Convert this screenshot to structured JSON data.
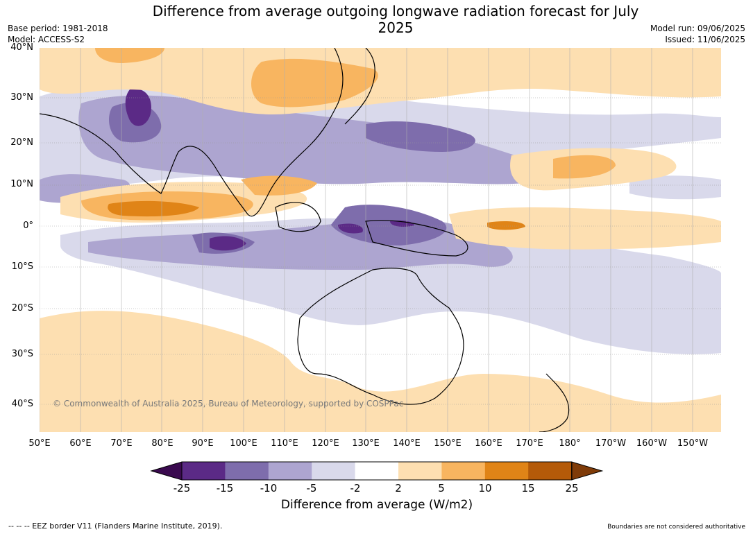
{
  "title": "Difference from average outgoing longwave radiation forecast for July 2025",
  "meta": {
    "base_period": "Base period: 1981-2018",
    "model": "Model: ACCESS-S2",
    "model_run": "Model run: 09/06/2025",
    "issued": "Issued: 11/06/2025"
  },
  "map": {
    "lat_labels": [
      "40°N",
      "30°N",
      "20°N",
      "10°N",
      "0°",
      "10°S",
      "20°S",
      "30°S",
      "40°S"
    ],
    "lon_labels": [
      "50°E",
      "60°E",
      "70°E",
      "80°E",
      "90°E",
      "100°E",
      "110°E",
      "120°E",
      "130°E",
      "140°E",
      "150°E",
      "160°E",
      "170°E",
      "180°",
      "170°W",
      "160°W",
      "150°W"
    ],
    "copyright": "© Commonwealth of Australia 2025, Bureau of Meteorology, supported by COSPPac"
  },
  "colorbar": {
    "tick_labels": [
      "-25",
      "-15",
      "-10",
      "-5",
      "-2",
      "2",
      "5",
      "10",
      "15",
      "25"
    ],
    "colors": [
      "#3a0a4f",
      "#5b2a86",
      "#7e6dac",
      "#ada5d0",
      "#d9d9eb",
      "#ffffff",
      "#fddfb1",
      "#f8b560",
      "#e08417",
      "#b45a09",
      "#7f3b08"
    ],
    "title": "Difference from average (W/m2)"
  },
  "footer": {
    "eez": "--  --  -- EEZ border V11 (Flanders Marine Institute, 2019).",
    "boundaries": "Boundaries are not considered authoritative"
  }
}
